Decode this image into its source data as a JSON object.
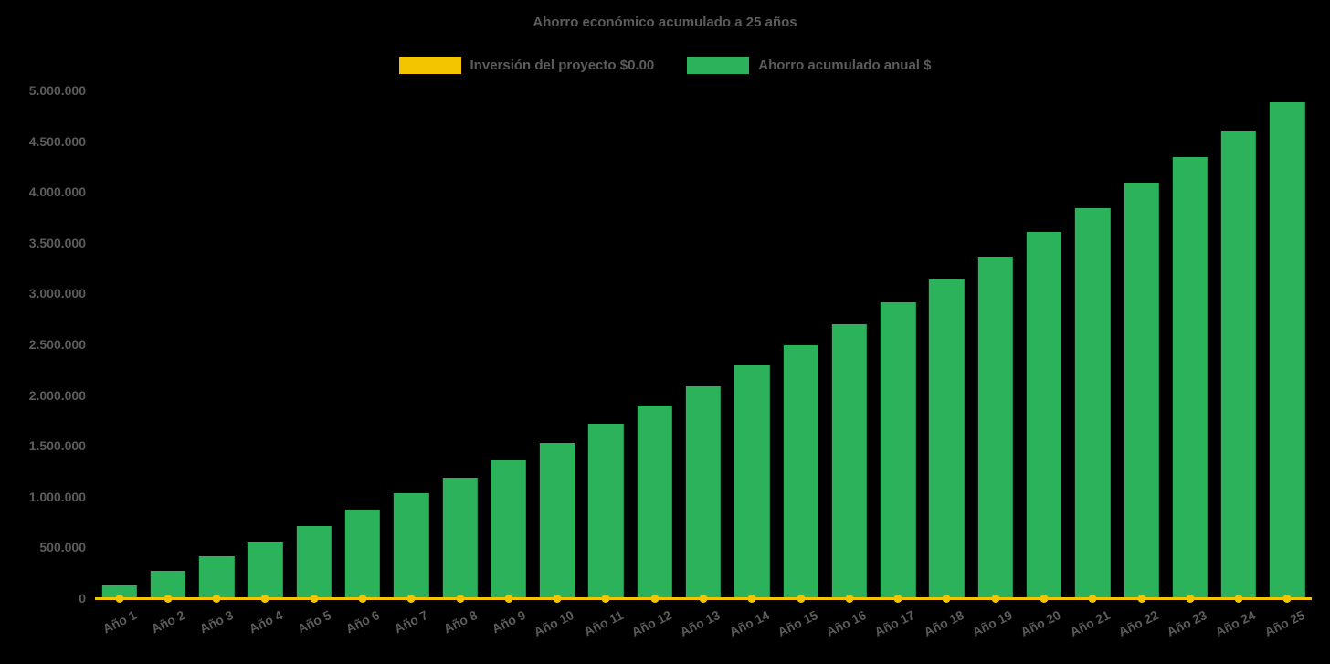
{
  "page": {
    "background": "#000000",
    "text_color": "#5c5c5c"
  },
  "title": "Ahorro económico acumulado a 25 años",
  "chart_data": {
    "type": "bar",
    "title": "Ahorro económico acumulado a 25 años",
    "legend_position": "top",
    "grid": false,
    "categories": [
      "Año 1",
      "Año 2",
      "Año 3",
      "Año 4",
      "Año 5",
      "Año 6",
      "Año 7",
      "Año 8",
      "Año 9",
      "Año 10",
      "Año 11",
      "Año 12",
      "Año 13",
      "Año 14",
      "Año 15",
      "Año 16",
      "Año 17",
      "Año 18",
      "Año 19",
      "Año 20",
      "Año 21",
      "Año 22",
      "Año 23",
      "Año 24",
      "Año 25"
    ],
    "series": [
      {
        "name": "Inversión del proyecto $0.00",
        "type": "line",
        "color": "#F2C500",
        "values": [
          0,
          0,
          0,
          0,
          0,
          0,
          0,
          0,
          0,
          0,
          0,
          0,
          0,
          0,
          0,
          0,
          0,
          0,
          0,
          0,
          0,
          0,
          0,
          0,
          0
        ]
      },
      {
        "name": "Ahorro acumulado anual $",
        "type": "bar",
        "color": "#2BB25A",
        "values": [
          130000,
          270000,
          410000,
          560000,
          710000,
          870000,
          1030000,
          1190000,
          1360000,
          1530000,
          1720000,
          1900000,
          2090000,
          2290000,
          2490000,
          2700000,
          2910000,
          3140000,
          3360000,
          3610000,
          3840000,
          4090000,
          4340000,
          4600000,
          4880000
        ]
      }
    ],
    "ylim": [
      0,
      5000000
    ],
    "yticks": [
      0,
      500000,
      1000000,
      1500000,
      2000000,
      2500000,
      3000000,
      3500000,
      4000000,
      4500000,
      5000000
    ],
    "ytick_labels": [
      "0",
      "500.000",
      "1.000.000",
      "1.500.000",
      "2.000.000",
      "2.500.000",
      "3.000.000",
      "3.500.000",
      "4.000.000",
      "4.500.000",
      "5.000.000"
    ]
  }
}
